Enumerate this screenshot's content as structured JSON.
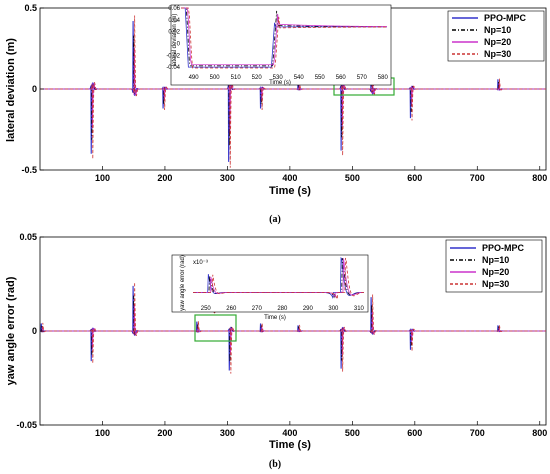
{
  "chart_data": [
    {
      "type": "line",
      "caption": "(a)",
      "xlabel": "Time (s)",
      "ylabel": "lateral deviation (m)",
      "xlim": [
        0,
        810
      ],
      "ylim": [
        -0.5,
        0.5
      ],
      "xticks": [
        "100",
        "200",
        "300",
        "400",
        "500",
        "600",
        "700",
        "800"
      ],
      "yticks": [
        "0.5",
        "0",
        "-0.5"
      ],
      "grid": false,
      "legend": {
        "position": "top-right"
      },
      "series": [
        {
          "name": "PPO-MPC",
          "color": "#3333cc",
          "style": "solid"
        },
        {
          "name": "Np=10",
          "color": "#000000",
          "style": "dashdot"
        },
        {
          "name": "Np=20",
          "color": "#cc33cc",
          "style": "solid"
        },
        {
          "name": "Np=30",
          "color": "#cc3333",
          "style": "dashed"
        }
      ],
      "events": [
        {
          "t": 82,
          "dir": -1,
          "amp": 0.4
        },
        {
          "t": 149,
          "dir": 1,
          "amp": 0.42
        },
        {
          "t": 197,
          "dir": -1,
          "amp": 0.12
        },
        {
          "t": 302,
          "dir": -1,
          "amp": 0.45
        },
        {
          "t": 353,
          "dir": -1,
          "amp": 0.12
        },
        {
          "t": 413,
          "dir": 1,
          "amp": 0.05
        },
        {
          "t": 482,
          "dir": -1,
          "amp": 0.38
        },
        {
          "t": 530,
          "dir": 1,
          "amp": 0.32
        },
        {
          "t": 593,
          "dir": -1,
          "amp": 0.18
        },
        {
          "t": 733,
          "dir": 1,
          "amp": 0.06
        }
      ],
      "inset": {
        "xlabel": "Time (s)",
        "ylabel": "lateral deviation (m)",
        "xlim": [
          484,
          582
        ],
        "ylim": [
          -0.05,
          0.06
        ],
        "xticks": [
          "490",
          "500",
          "510",
          "520",
          "530",
          "540",
          "550",
          "560",
          "570",
          "580"
        ],
        "yticks": [
          "0.06",
          "0.04",
          "0.02",
          "0",
          "-0.02",
          "-0.04"
        ]
      }
    },
    {
      "type": "line",
      "caption": "(b)",
      "xlabel": "Time (s)",
      "ylabel": "yaw angle error (rad)",
      "xlim": [
        0,
        810
      ],
      "ylim": [
        -0.05,
        0.05
      ],
      "xticks": [
        "100",
        "200",
        "300",
        "400",
        "500",
        "600",
        "700",
        "800"
      ],
      "yticks": [
        "0.05",
        "0",
        "-0.05"
      ],
      "grid": false,
      "legend": {
        "position": "top-right"
      },
      "series": [
        {
          "name": "PPO-MPC",
          "color": "#3333cc",
          "style": "solid"
        },
        {
          "name": "Np=10",
          "color": "#000000",
          "style": "dashdot"
        },
        {
          "name": "Np=20",
          "color": "#cc33cc",
          "style": "solid"
        },
        {
          "name": "Np=30",
          "color": "#cc3333",
          "style": "dashed"
        }
      ],
      "events": [
        {
          "t": 2,
          "dir": 1,
          "amp": 0.004
        },
        {
          "t": 82,
          "dir": -1,
          "amp": 0.016
        },
        {
          "t": 149,
          "dir": 1,
          "amp": 0.024
        },
        {
          "t": 251,
          "dir": 1,
          "amp": 0.005
        },
        {
          "t": 303,
          "dir": -1,
          "amp": 0.021
        },
        {
          "t": 353,
          "dir": 1,
          "amp": 0.004
        },
        {
          "t": 413,
          "dir": 1,
          "amp": 0.003
        },
        {
          "t": 482,
          "dir": -1,
          "amp": 0.02
        },
        {
          "t": 530,
          "dir": 1,
          "amp": 0.018
        },
        {
          "t": 593,
          "dir": -1,
          "amp": 0.01
        },
        {
          "t": 733,
          "dir": 1,
          "amp": 0.003
        }
      ],
      "inset": {
        "xlabel": "Time (s)",
        "ylabel": "yaw angle error (rad)",
        "exponent": "x10⁻³",
        "xlim": [
          245,
          312
        ],
        "ylim": [
          -2,
          6
        ],
        "xticks": [
          "250",
          "260",
          "270",
          "280",
          "290",
          "300",
          "310"
        ],
        "yticks": []
      }
    }
  ]
}
